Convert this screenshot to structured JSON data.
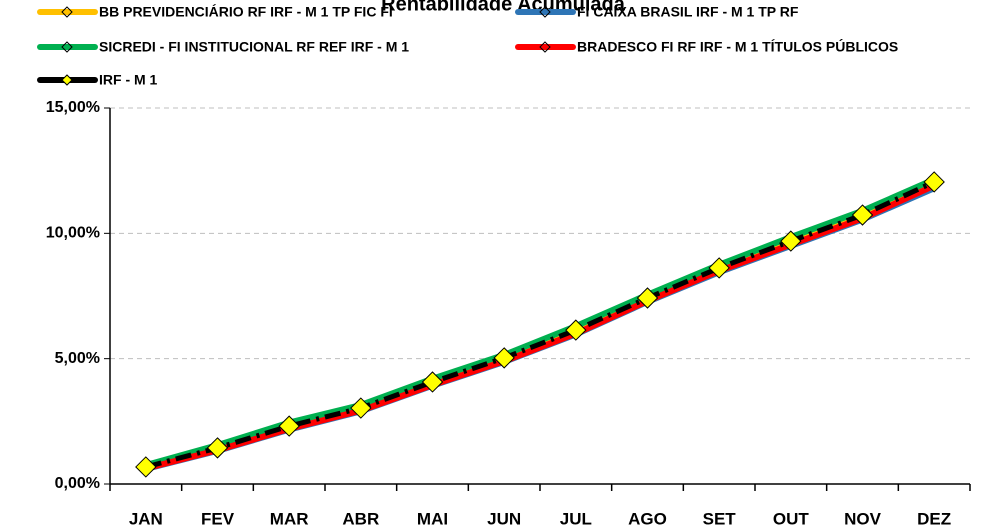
{
  "chart_data": {
    "type": "line",
    "title": "Rentabilidade Acumulada",
    "categories": [
      "JAN",
      "FEV",
      "MAR",
      "ABR",
      "MAI",
      "JUN",
      "JUL",
      "AGO",
      "SET",
      "OUT",
      "NOV",
      "DEZ"
    ],
    "series": [
      {
        "name": "BB PREVIDENCIÁRIO RF IRF - M 1 TP FIC FI",
        "color": "#ffc000",
        "values": [
          0.66,
          1.4,
          2.27,
          3.0,
          4.03,
          5.0,
          6.1,
          7.38,
          8.58,
          9.66,
          10.7,
          12.0
        ]
      },
      {
        "name": "FI CAIXA BRASIL IRF - M 1 TP RF",
        "color": "#2e75b6",
        "values": [
          0.6,
          1.32,
          2.17,
          2.9,
          3.92,
          4.87,
          5.97,
          7.27,
          8.45,
          9.5,
          10.55,
          11.8
        ]
      },
      {
        "name": "SICREDI - FI INSTITUCIONAL RF REF IRF - M 1",
        "color": "#00b050",
        "values": [
          0.75,
          1.55,
          2.45,
          3.15,
          4.2,
          5.15,
          6.3,
          7.55,
          8.75,
          9.85,
          10.9,
          12.15
        ]
      },
      {
        "name": "BRADESCO FI RF IRF - M 1 TÍTULOS PÚBLICOS",
        "color": "#ff0000",
        "values": [
          0.62,
          1.35,
          2.2,
          2.93,
          3.95,
          4.9,
          6.0,
          7.3,
          8.5,
          9.55,
          10.6,
          11.9
        ]
      },
      {
        "name": "IRF - M 1",
        "color": "#000000",
        "dashed": true,
        "marker": "diamond",
        "marker_color": "#ffff00",
        "values": [
          0.68,
          1.44,
          2.31,
          3.03,
          4.07,
          5.03,
          6.14,
          7.42,
          8.62,
          9.69,
          10.73,
          12.05
        ]
      }
    ],
    "ylim": [
      0,
      15
    ],
    "yticks": [
      {
        "value": 0,
        "label": "0,00%"
      },
      {
        "value": 5,
        "label": "5,00%"
      },
      {
        "value": 10,
        "label": "10,00%"
      },
      {
        "value": 15,
        "label": "15,00%"
      }
    ],
    "grid": true,
    "legend": "top"
  }
}
